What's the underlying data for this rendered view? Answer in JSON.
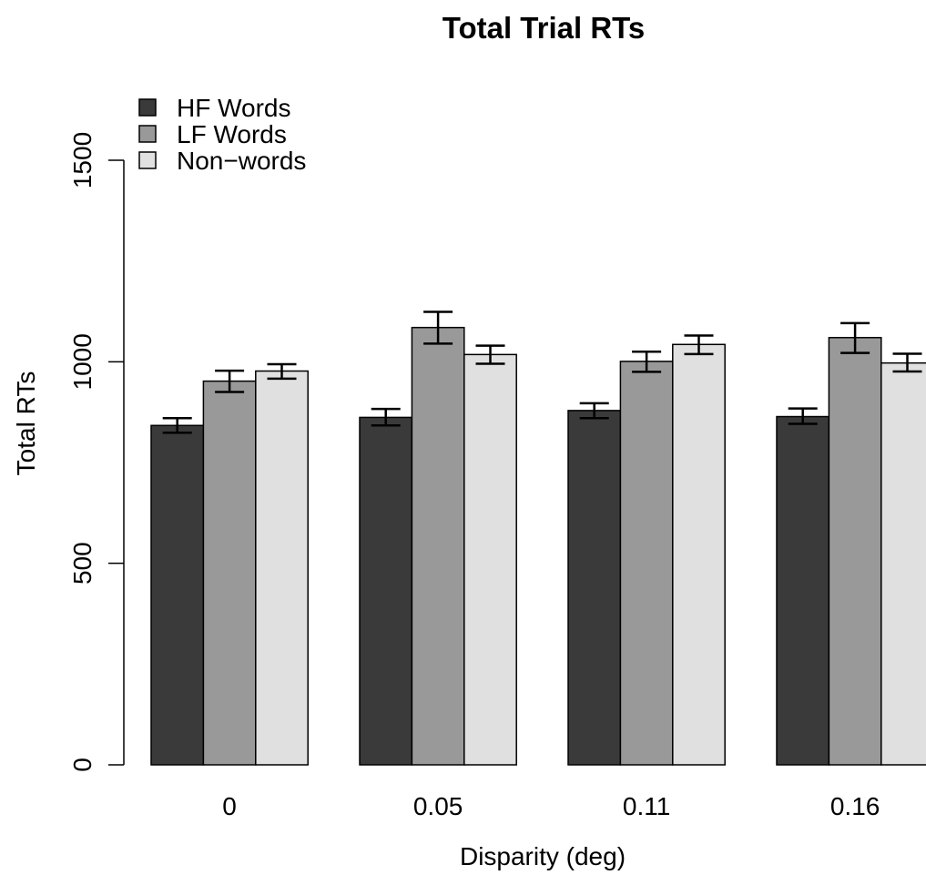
{
  "chart_data": {
    "type": "bar",
    "title": "Total Trial RTs",
    "xlabel": "Disparity (deg)",
    "ylabel": "Total RTs",
    "categories": [
      "0",
      "0.05",
      "0.11",
      "0.16"
    ],
    "ylim": [
      0,
      1500
    ],
    "yticks": [
      "0",
      "500",
      "1000",
      "1500"
    ],
    "legend_position": "top-left",
    "grid": false,
    "series": [
      {
        "name": "HF Words",
        "color": "#3a3a3a",
        "values": [
          842,
          862,
          879,
          864
        ],
        "err_low": [
          824,
          842,
          860,
          846
        ],
        "err_high": [
          860,
          883,
          897,
          884
        ]
      },
      {
        "name": "LF Words",
        "color": "#999999",
        "values": [
          952,
          1085,
          1001,
          1060
        ],
        "err_low": [
          925,
          1045,
          975,
          1022
        ],
        "err_high": [
          978,
          1124,
          1025,
          1096
        ]
      },
      {
        "name": "Non−words",
        "color": "#e0e0e0",
        "values": [
          977,
          1018,
          1043,
          997
        ],
        "err_low": [
          958,
          995,
          1019,
          976
        ],
        "err_high": [
          994,
          1040,
          1065,
          1020
        ]
      }
    ]
  }
}
